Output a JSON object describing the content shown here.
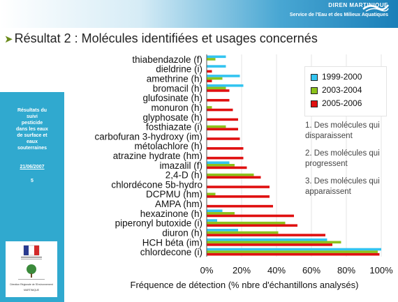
{
  "header": {
    "org_name": "DIREN MARTINIQUE",
    "service": "Service de l'Eau et des Milieux Aquatiques"
  },
  "title": "Résultat 2 : Molécules identifiées et usages concernés",
  "sidebar": {
    "lines": [
      "Résultats du",
      "suivi",
      "pesticide",
      "dans les eaux",
      "de surface et",
      "eaux",
      "souterraines"
    ],
    "date": "21/06/2007",
    "page": "5"
  },
  "logo": {
    "line1": "Direction Régionale de l'Environnement",
    "line2": "MARTINIQUE"
  },
  "notes": [
    [
      "1. Des molécules qui",
      "disparaissent"
    ],
    [
      "2. Des molécules qui",
      "progressent"
    ],
    [
      "3. Des molécules qui",
      "apparaissent"
    ]
  ],
  "chart_data": {
    "type": "bar",
    "orientation": "horizontal",
    "xlabel": "Fréquence de détection (% nbre d'échantillons analysés)",
    "xlim": [
      0,
      100
    ],
    "xticks": [
      "0%",
      "20%",
      "40%",
      "60%",
      "80%",
      "100%"
    ],
    "legend_position": "top-right",
    "categories": [
      "thiabendazole (f)",
      "dieldrine (i)",
      "amethrine (h)",
      "bromacil (h)",
      "glufosinate (h)",
      "monuron (h)",
      "glyphosate (h)",
      "fosthiazate (i)",
      "carbofuran 3-hydroxy (im)",
      "métolachlore (h)",
      "atrazine hydrate (hm)",
      "imazalil (f)",
      "2,4-D (h)",
      "chlordécone 5b-hydro",
      "DCPMU (hm)",
      "AMPA (hm)",
      "hexazinone (h)",
      "piperonyl butoxide (i)",
      "diuron (h)",
      "HCH béta (im)",
      "chlordecone (i)"
    ],
    "series": [
      {
        "name": "1999-2000",
        "color": "#33c4f0",
        "values": [
          11,
          11,
          19,
          21,
          0,
          0,
          0,
          0,
          0,
          0,
          0,
          13,
          0,
          0,
          0,
          0,
          9,
          6,
          18,
          69,
          100
        ]
      },
      {
        "name": "2003-2004",
        "color": "#8cc21b",
        "values": [
          5,
          0,
          9,
          11,
          0,
          3,
          0,
          11,
          0,
          0,
          0,
          16,
          27,
          0,
          5,
          0,
          16,
          45,
          41,
          77,
          98
        ]
      },
      {
        "name": "2005-2006",
        "color": "#e01010",
        "values": [
          0,
          3,
          3,
          13,
          13,
          15,
          18,
          18,
          19,
          21,
          21,
          23,
          31,
          36,
          36,
          38,
          50,
          52,
          68,
          72,
          99
        ]
      }
    ]
  }
}
